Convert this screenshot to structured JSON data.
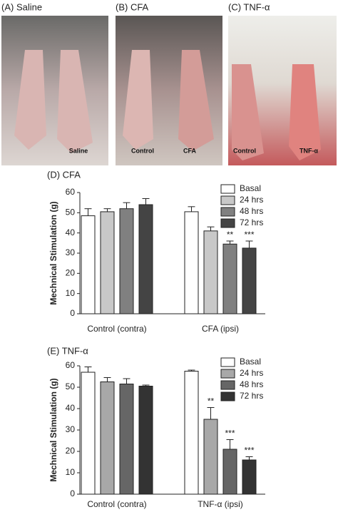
{
  "photos": [
    {
      "title": "(A) Saline",
      "labels": [
        "Saline"
      ]
    },
    {
      "title": "(B) CFA",
      "labels": [
        "Control",
        "CFA"
      ]
    },
    {
      "title": "(C) TNF-α",
      "labels": [
        "Control",
        "TNF-α"
      ]
    }
  ],
  "chart_data": [
    {
      "type": "bar",
      "title": "(D) CFA",
      "y_label": "Mechnical Stimulation (g)",
      "categories": [
        "Control (contra)",
        "CFA (ipsi)"
      ],
      "series": [
        {
          "name": "Basal",
          "color": "#ffffff",
          "values": [
            48.5,
            50.5
          ],
          "errors": [
            3.5,
            2.5
          ],
          "stars": [
            null,
            null
          ]
        },
        {
          "name": "24 hrs",
          "color": "#c8c8c8",
          "values": [
            50.5,
            41
          ],
          "errors": [
            1.5,
            2
          ],
          "stars": [
            null,
            null
          ]
        },
        {
          "name": "48 hrs",
          "color": "#808080",
          "values": [
            52,
            34.5
          ],
          "errors": [
            3,
            1.5
          ],
          "stars": [
            null,
            "**"
          ]
        },
        {
          "name": "72 hrs",
          "color": "#444444",
          "values": [
            54,
            32.5
          ],
          "errors": [
            3,
            3.5
          ],
          "stars": [
            null,
            "***"
          ]
        }
      ],
      "ylim": [
        0,
        60
      ],
      "yticks": [
        0,
        10,
        20,
        30,
        40,
        50,
        60
      ],
      "legend": "top-right"
    },
    {
      "type": "bar",
      "title": "(E) TNF-α",
      "y_label": "Mechnical Stimulation (g)",
      "categories": [
        "Control (contra)",
        "TNF-α (ipsi)"
      ],
      "series": [
        {
          "name": "Basal",
          "color": "#ffffff",
          "values": [
            57,
            57.5
          ],
          "errors": [
            2.5,
            0.5
          ],
          "stars": [
            null,
            null
          ]
        },
        {
          "name": "24 hrs",
          "color": "#a8a8a8",
          "values": [
            52.5,
            35
          ],
          "errors": [
            2,
            5.5
          ],
          "stars": [
            null,
            "**"
          ]
        },
        {
          "name": "48 hrs",
          "color": "#666666",
          "values": [
            51.5,
            21
          ],
          "errors": [
            2.5,
            4.5
          ],
          "stars": [
            null,
            "***"
          ]
        },
        {
          "name": "72 hrs",
          "color": "#333333",
          "values": [
            50.5,
            16
          ],
          "errors": [
            0.5,
            1.5
          ],
          "stars": [
            null,
            "***"
          ]
        }
      ],
      "ylim": [
        0,
        60
      ],
      "yticks": [
        0,
        10,
        20,
        30,
        40,
        50,
        60
      ],
      "legend": "top-right"
    }
  ]
}
